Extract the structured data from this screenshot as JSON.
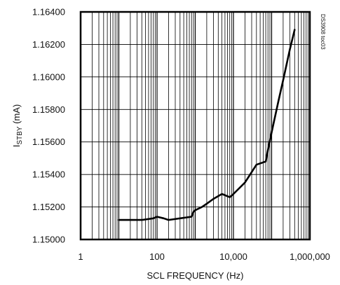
{
  "chart_data": {
    "type": "line",
    "title": "",
    "xlabel": "SCL FREQUENCY (Hz)",
    "ylabel_main": "I",
    "ylabel_sub": "STBY",
    "ylabel_unit": " (mA)",
    "x_scale": "log",
    "xlim": [
      1,
      1000000
    ],
    "ylim": [
      1.15,
      1.164
    ],
    "grid": true,
    "x_ticks": [
      {
        "value": 1,
        "label": "1"
      },
      {
        "value": 100,
        "label": "100"
      },
      {
        "value": 10000,
        "label": "10,000"
      },
      {
        "value": 1000000,
        "label": "1,000,000"
      }
    ],
    "y_ticks": [
      {
        "value": 1.15,
        "label": "1.15000"
      },
      {
        "value": 1.152,
        "label": "1.15200"
      },
      {
        "value": 1.154,
        "label": "1.15400"
      },
      {
        "value": 1.156,
        "label": "1.15600"
      },
      {
        "value": 1.158,
        "label": "1.15800"
      },
      {
        "value": 1.16,
        "label": "1.16000"
      },
      {
        "value": 1.162,
        "label": "1.16200"
      },
      {
        "value": 1.164,
        "label": "1.16400"
      }
    ],
    "annotation": "DS3908 toc03",
    "series": [
      {
        "color": "#000000",
        "x": [
          10,
          20,
          40,
          80,
          100,
          150,
          200,
          400,
          800,
          900,
          1000,
          1500,
          2000,
          3000,
          5000,
          8000,
          9000,
          10000,
          20000,
          40000,
          70000,
          80000,
          100000,
          150000,
          200000,
          300000,
          400000
        ],
        "y": [
          1.1512,
          1.1512,
          1.1512,
          1.1513,
          1.1514,
          1.1513,
          1.1512,
          1.1513,
          1.1514,
          1.1517,
          1.1518,
          1.152,
          1.1522,
          1.1525,
          1.1528,
          1.1526,
          1.1527,
          1.1528,
          1.1535,
          1.1546,
          1.1548,
          1.1555,
          1.1566,
          1.1585,
          1.1598,
          1.1617,
          1.1629
        ]
      }
    ]
  }
}
